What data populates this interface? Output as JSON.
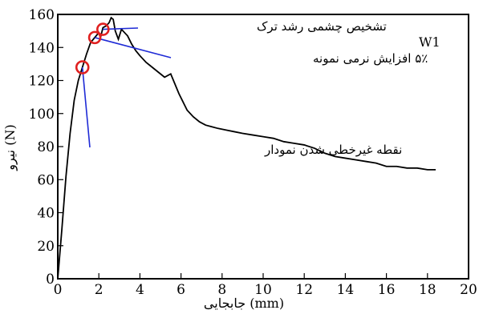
{
  "chart_data": {
    "type": "line",
    "title": "",
    "xlabel": "جابجایی (mm)",
    "ylabel": "نیرو (N)",
    "xlim": [
      0,
      20
    ],
    "ylim": [
      0,
      160
    ],
    "x_ticks": [
      0,
      2,
      4,
      6,
      8,
      10,
      12,
      14,
      16,
      18,
      20
    ],
    "y_ticks": [
      0,
      20,
      40,
      60,
      80,
      100,
      120,
      140,
      160
    ],
    "grid": false,
    "line_color": "#000000",
    "annotation_color": "#1f2bd6",
    "marker_color": "#e02020",
    "series": [
      {
        "name": "W1",
        "x": [
          0,
          0.2,
          0.4,
          0.6,
          0.8,
          1.0,
          1.2,
          1.4,
          1.6,
          1.8,
          2.0,
          2.1,
          2.2,
          2.35,
          2.5,
          2.6,
          2.7,
          2.8,
          2.95,
          3.1,
          3.25,
          3.4,
          3.6,
          3.8,
          4.0,
          4.3,
          4.6,
          5.0,
          5.2,
          5.5,
          5.7,
          5.9,
          6.1,
          6.3,
          6.6,
          6.9,
          7.2,
          7.5,
          7.8,
          8.2,
          8.6,
          9.0,
          9.5,
          10.0,
          10.5,
          11.0,
          11.5,
          12.0,
          12.5,
          13.0,
          13.5,
          14.0,
          14.5,
          15.0,
          15.5,
          16.0,
          16.5,
          17.0,
          17.5,
          18.0,
          18.4
        ],
        "y": [
          0,
          30,
          62,
          88,
          108,
          120,
          128,
          136,
          143,
          146,
          149,
          147,
          152,
          153,
          155,
          158,
          157,
          150,
          145,
          151,
          149,
          147,
          142,
          138,
          135,
          131,
          128,
          124,
          122,
          124,
          118,
          112,
          107,
          102,
          98,
          95,
          93,
          92,
          91,
          90,
          89,
          88,
          87,
          86,
          85,
          83,
          82,
          81,
          79,
          76,
          74,
          73,
          72,
          71,
          70,
          68,
          68,
          67,
          67,
          66,
          66
        ]
      }
    ],
    "annotations": [
      {
        "label": "تشخیص چشمی رشد ترک",
        "point": [
          2.2,
          151
        ]
      },
      {
        "label": "۵٪ افزایش نرمی نمونه",
        "point": [
          1.8,
          146
        ]
      },
      {
        "label": "نقطه غیرخطی شدن نمودار",
        "point": [
          1.2,
          128
        ]
      }
    ]
  }
}
